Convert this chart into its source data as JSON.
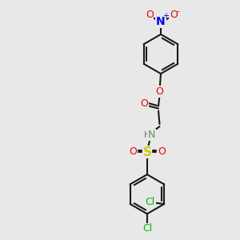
{
  "bg_color": "#e8e8e8",
  "fig_size": [
    3.0,
    3.0
  ],
  "dpi": 100,
  "bond_color": "#1a1a1a",
  "bond_lw": 1.5,
  "atom_colors": {
    "C": "#1a1a1a",
    "H": "#6a6a6a",
    "N_blue": "#0000ee",
    "O": "#ee0000",
    "S": "#cccc00",
    "Cl": "#00bb00",
    "N_nh": "#5a9a5a"
  },
  "font_size": 9,
  "font_size_small": 8
}
